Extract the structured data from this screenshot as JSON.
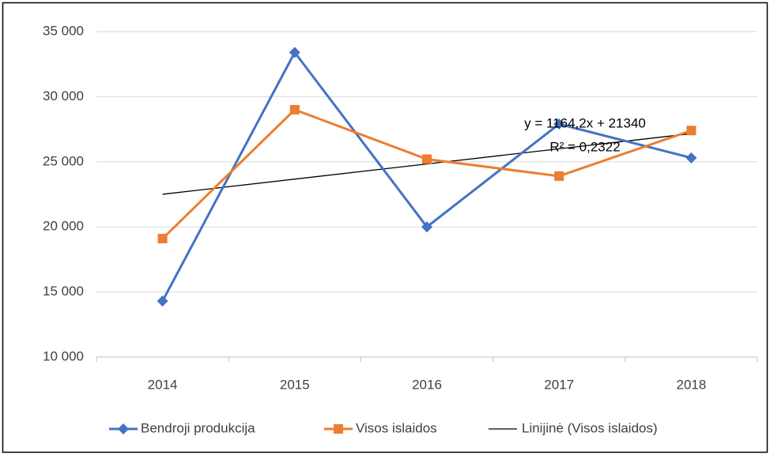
{
  "chart_data": {
    "type": "line",
    "categories": [
      "2014",
      "2015",
      "2016",
      "2017",
      "2018"
    ],
    "series": [
      {
        "name": "Bendroji produkcija",
        "color": "#4472c4",
        "marker": "diamond",
        "values": [
          14300,
          33400,
          20000,
          27900,
          25300
        ]
      },
      {
        "name": "Visos islaidos",
        "color": "#ed7d31",
        "marker": "square",
        "values": [
          19100,
          29000,
          25200,
          23900,
          27400
        ]
      }
    ],
    "trendline": {
      "name": "Linijinė (Visos islaidos)",
      "color": "#000000",
      "slope": 1164.2,
      "intercept": 21340,
      "equation": "y = 1164,2x + 21340",
      "r_squared": 0.2322,
      "r_squared_label": "R² = 0,2322"
    },
    "ylim": [
      10000,
      35000
    ],
    "yticks": [
      {
        "value": 10000,
        "label": "10 000"
      },
      {
        "value": 15000,
        "label": "15 000"
      },
      {
        "value": 20000,
        "label": "20 000"
      },
      {
        "value": 25000,
        "label": "25 000"
      },
      {
        "value": 30000,
        "label": "30 000"
      },
      {
        "value": 35000,
        "label": "35 000"
      }
    ],
    "grid": true,
    "legend": "bottom"
  }
}
